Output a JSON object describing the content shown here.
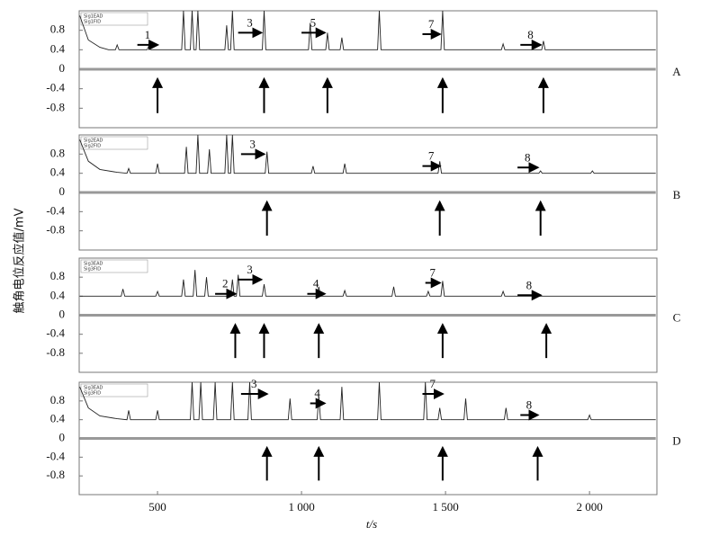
{
  "chart_data": [
    {
      "type": "line",
      "label": "A",
      "ylabel": "触角电位反应值/mV",
      "xlim": [
        228,
        2234
      ],
      "ylim": [
        -1.2,
        1.2
      ],
      "yticks": [
        0.8,
        0.4,
        0,
        -0.4,
        -0.8
      ],
      "series": [
        {
          "name": "Sig1EAD",
          "color": "#999999",
          "x": [
            230,
            2230
          ],
          "values": [
            0,
            0
          ]
        },
        {
          "name": "Sig1FID",
          "color": "#222222",
          "x": [
            230,
            260,
            300,
            330,
            354,
            360,
            366,
            464,
            470,
            476,
            584,
            590,
            596,
            614,
            620,
            626,
            634,
            640,
            646,
            734,
            740,
            746,
            754,
            760,
            766,
            864,
            870,
            876,
            1024,
            1030,
            1036,
            1084,
            1090,
            1096,
            1134,
            1140,
            1146,
            1264,
            1270,
            1276,
            1484,
            1490,
            1496,
            1694,
            1700,
            1706,
            1834,
            1840,
            1846,
            2230
          ],
          "values": [
            1.1,
            0.6,
            0.45,
            0.4,
            0.4,
            0.5,
            0.4,
            0.4,
            0.48,
            0.4,
            0.4,
            1.2,
            0.4,
            0.4,
            1.2,
            0.4,
            0.4,
            1.2,
            0.4,
            0.4,
            0.9,
            0.4,
            0.4,
            1.2,
            0.4,
            0.4,
            1.2,
            0.4,
            0.4,
            0.95,
            0.4,
            0.4,
            0.75,
            0.4,
            0.4,
            0.65,
            0.4,
            0.4,
            1.2,
            0.4,
            0.4,
            1.2,
            0.4,
            0.4,
            0.52,
            0.4,
            0.4,
            0.58,
            0.4,
            0.4
          ]
        }
      ],
      "annotations": [
        "1",
        "3",
        "5",
        "7",
        "8"
      ]
    },
    {
      "type": "line",
      "label": "B",
      "xlim": [
        228,
        2234
      ],
      "ylim": [
        -1.2,
        1.2
      ],
      "yticks": [
        0.8,
        0.4,
        0,
        -0.4,
        -0.8
      ],
      "series": [
        {
          "name": "Sig2EAD",
          "color": "#999999",
          "x": [
            230,
            2230
          ],
          "values": [
            0,
            0
          ]
        },
        {
          "name": "Sig2FID",
          "color": "#222222",
          "x": [
            230,
            260,
            300,
            360,
            394,
            400,
            406,
            494,
            500,
            506,
            594,
            600,
            606,
            634,
            640,
            646,
            674,
            680,
            686,
            734,
            740,
            746,
            754,
            760,
            766,
            874,
            880,
            886,
            1034,
            1040,
            1046,
            1144,
            1150,
            1156,
            1474,
            1480,
            1486,
            1824,
            1830,
            1836,
            2004,
            2010,
            2016,
            2230
          ],
          "values": [
            1.1,
            0.65,
            0.48,
            0.42,
            0.4,
            0.5,
            0.4,
            0.4,
            0.6,
            0.4,
            0.4,
            0.95,
            0.4,
            0.4,
            1.2,
            0.4,
            0.4,
            0.9,
            0.4,
            0.4,
            1.2,
            0.4,
            0.4,
            1.2,
            0.4,
            0.4,
            0.85,
            0.4,
            0.4,
            0.55,
            0.4,
            0.4,
            0.6,
            0.4,
            0.4,
            0.65,
            0.4,
            0.4,
            0.45,
            0.4,
            0.4,
            0.45,
            0.4,
            0.4
          ]
        }
      ],
      "annotations": [
        "3",
        "7",
        "8"
      ]
    },
    {
      "type": "line",
      "label": "C",
      "xlim": [
        228,
        2234
      ],
      "ylim": [
        -1.2,
        1.2
      ],
      "yticks": [
        0.8,
        0.4,
        0,
        -0.4,
        -0.8
      ],
      "series": [
        {
          "name": "Sig3EAD",
          "color": "#999999",
          "x": [
            230,
            2230
          ],
          "values": [
            0,
            0
          ]
        },
        {
          "name": "Sig3FID",
          "color": "#222222",
          "x": [
            230,
            374,
            380,
            386,
            494,
            500,
            506,
            584,
            590,
            596,
            624,
            630,
            636,
            664,
            670,
            676,
            754,
            760,
            766,
            774,
            780,
            786,
            864,
            870,
            876,
            1054,
            1060,
            1066,
            1144,
            1150,
            1156,
            1314,
            1320,
            1326,
            1434,
            1440,
            1446,
            1484,
            1490,
            1496,
            1694,
            1700,
            1706,
            2230
          ],
          "values": [
            0.4,
            0.4,
            0.55,
            0.4,
            0.4,
            0.5,
            0.4,
            0.4,
            0.75,
            0.4,
            0.4,
            0.95,
            0.4,
            0.4,
            0.8,
            0.4,
            0.4,
            0.75,
            0.4,
            0.4,
            0.85,
            0.4,
            0.4,
            0.65,
            0.4,
            0.4,
            0.6,
            0.4,
            0.4,
            0.52,
            0.4,
            0.4,
            0.6,
            0.4,
            0.4,
            0.5,
            0.4,
            0.4,
            0.72,
            0.4,
            0.4,
            0.5,
            0.4,
            0.4
          ]
        }
      ],
      "annotations": [
        "2",
        "3",
        "4",
        "7",
        "8"
      ]
    },
    {
      "type": "line",
      "label": "D",
      "xlabel": "t/s",
      "xlim": [
        228,
        2234
      ],
      "ylim": [
        -1.2,
        1.2
      ],
      "yticks": [
        0.8,
        0.4,
        0,
        -0.4,
        -0.8
      ],
      "xticks": [
        500,
        {
          "value": 1000,
          "label": "1 000"
        },
        {
          "value": 1500,
          "label": "1 500"
        },
        {
          "value": 2000,
          "label": "2 000"
        }
      ],
      "series": [
        {
          "name": "Sig3EAD",
          "color": "#999999",
          "x": [
            230,
            2230
          ],
          "values": [
            0,
            0
          ]
        },
        {
          "name": "Sig3FID",
          "color": "#222222",
          "x": [
            230,
            260,
            300,
            360,
            394,
            400,
            406,
            494,
            500,
            506,
            614,
            620,
            626,
            644,
            650,
            656,
            694,
            700,
            706,
            754,
            760,
            766,
            814,
            820,
            826,
            954,
            960,
            966,
            1054,
            1060,
            1066,
            1134,
            1140,
            1146,
            1264,
            1270,
            1276,
            1424,
            1430,
            1436,
            1474,
            1480,
            1486,
            1564,
            1570,
            1576,
            1704,
            1710,
            1716,
            1994,
            2000,
            2006,
            2230
          ],
          "values": [
            1.1,
            0.65,
            0.48,
            0.42,
            0.4,
            0.6,
            0.4,
            0.4,
            0.6,
            0.4,
            0.4,
            1.2,
            0.4,
            0.4,
            1.2,
            0.4,
            0.4,
            1.2,
            0.4,
            0.4,
            1.2,
            0.4,
            0.4,
            1.2,
            0.4,
            0.4,
            0.85,
            0.4,
            0.4,
            0.9,
            0.4,
            0.4,
            1.1,
            0.4,
            0.4,
            1.2,
            0.4,
            0.4,
            1.2,
            0.4,
            0.4,
            0.65,
            0.4,
            0.4,
            0.85,
            0.4,
            0.4,
            0.65,
            0.4,
            0.4,
            0.5,
            0.4,
            0.4
          ]
        }
      ],
      "annotations": [
        "3",
        "4",
        "7",
        "8"
      ]
    }
  ]
}
